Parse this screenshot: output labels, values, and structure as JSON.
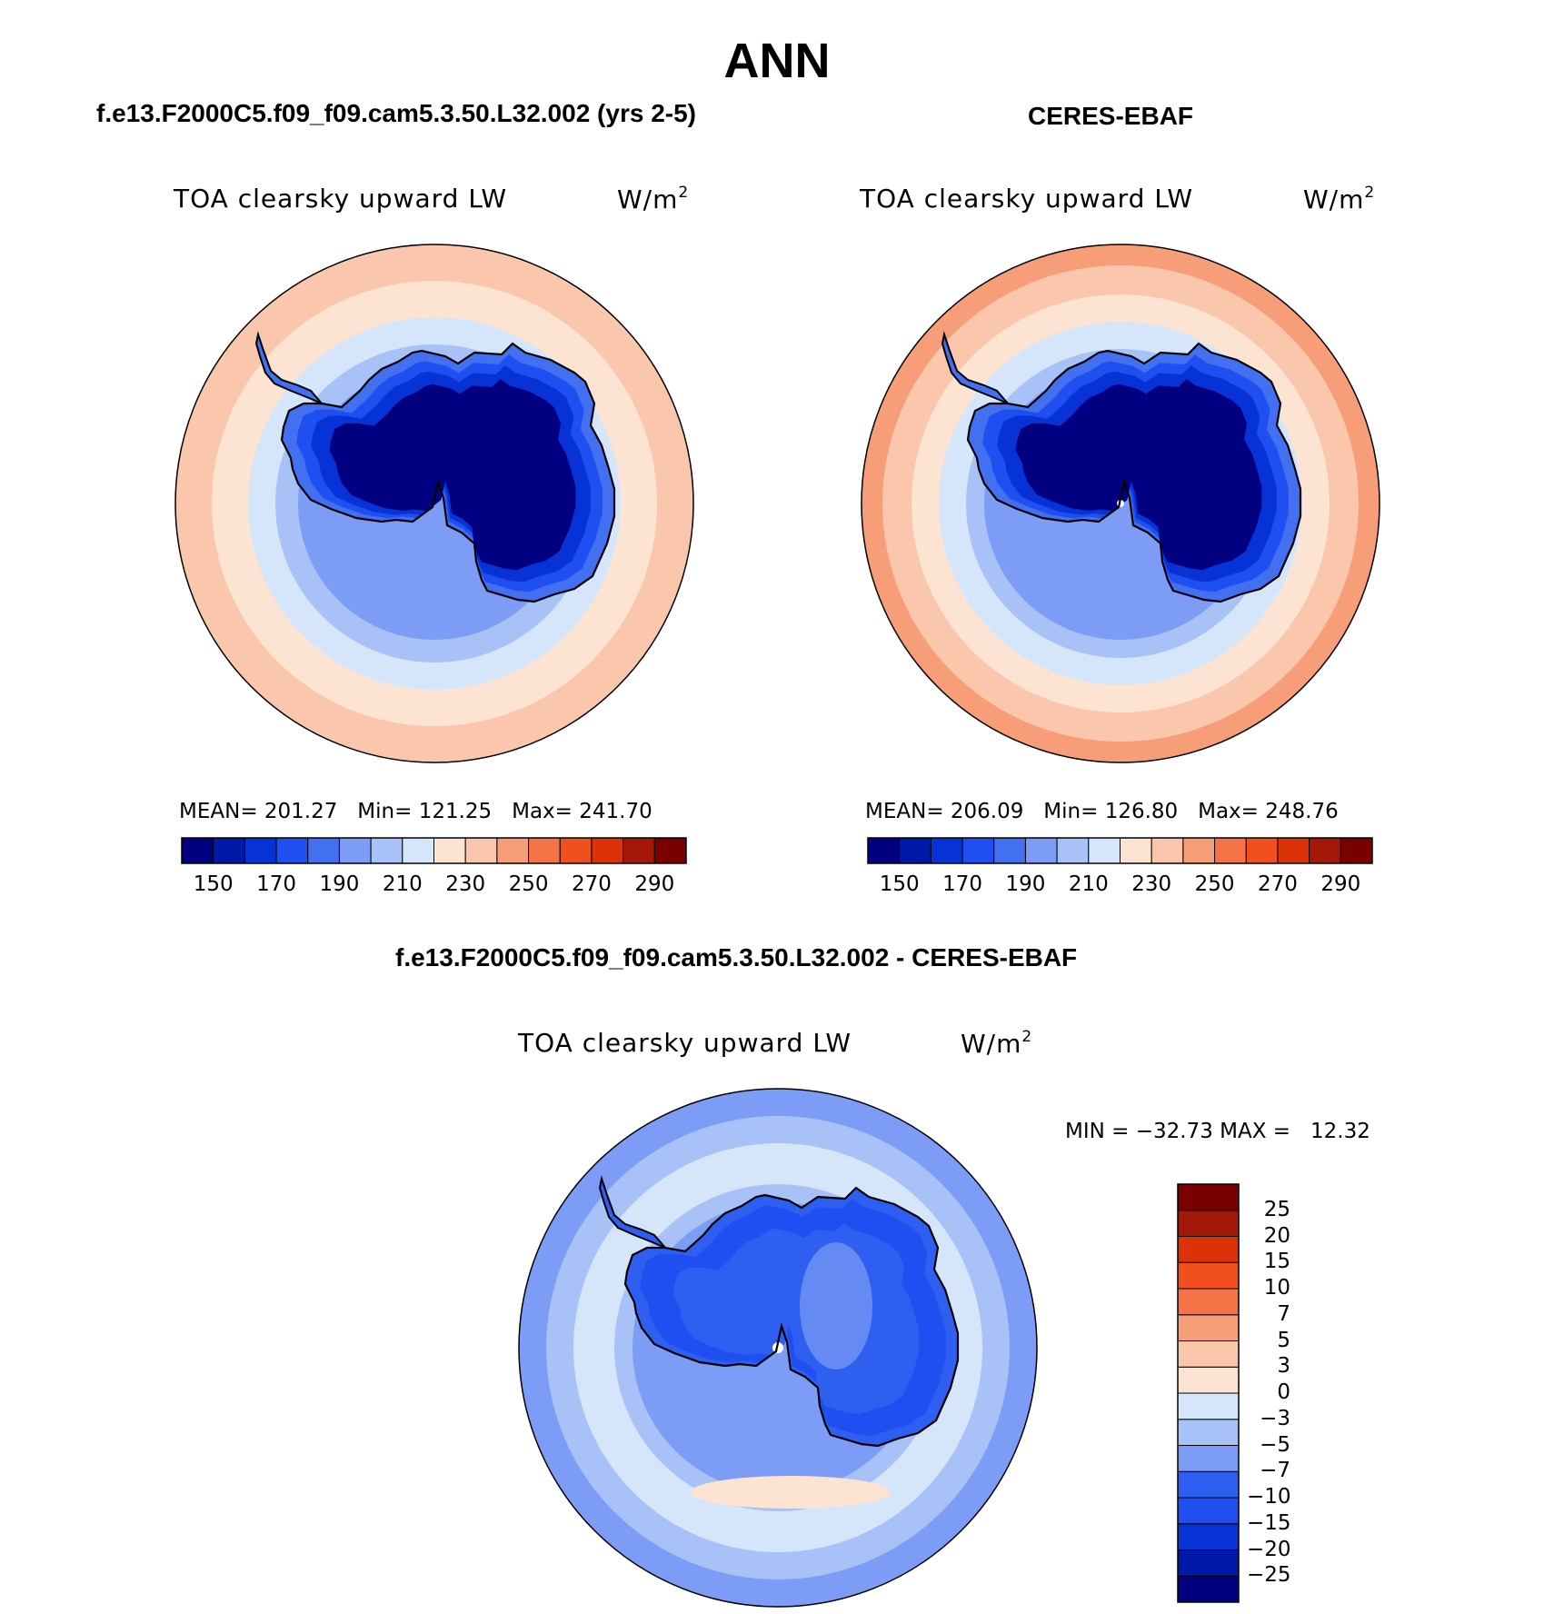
{
  "title": "ANN",
  "panels": [
    {
      "case_title": "f.e13.F2000C5.f09_f09.cam5.3.50.L32.002 (yrs 2-5)",
      "var_label": "TOA clearsky upward LW",
      "units_base": "W/m",
      "units_exp": "2",
      "stats": "MEAN= 201.27   Min= 121.25   Max= 241.70"
    },
    {
      "case_title": "CERES-EBAF",
      "var_label": "TOA clearsky upward LW",
      "units_base": "W/m",
      "units_exp": "2",
      "stats": "MEAN= 206.09   Min= 126.80   Max= 248.76"
    },
    {
      "case_title": "f.e13.F2000C5.f09_f09.cam5.3.50.L32.002 - CERES-EBAF",
      "var_label": "TOA clearsky upward LW",
      "units_base": "W/m",
      "units_exp": "2",
      "stats": "MIN = −32.73 MAX =   12.32"
    }
  ],
  "chart_data": [
    {
      "type": "heatmap",
      "projection": "south-polar stereographic",
      "title": "f.e13.F2000C5.f09_f09.cam5.3.50.L32.002 (yrs 2-5)",
      "variable": "TOA clearsky upward LW",
      "units": "W/m2",
      "mean": 201.27,
      "min": 121.25,
      "max": 241.7,
      "levels": [
        150,
        170,
        190,
        210,
        230,
        250,
        270,
        290
      ],
      "colors": [
        "#000080",
        "#0019a8",
        "#0632d6",
        "#1f4ff0",
        "#4270f0",
        "#7d9cf5",
        "#a8c2f7",
        "#d6e6fa",
        "#fde4d2",
        "#fac7ad",
        "#f79d77",
        "#f57347",
        "#f24f1f",
        "#dc3208",
        "#a31808",
        "#7a0000"
      ]
    },
    {
      "type": "heatmap",
      "projection": "south-polar stereographic",
      "title": "CERES-EBAF",
      "variable": "TOA clearsky upward LW",
      "units": "W/m2",
      "mean": 206.09,
      "min": 126.8,
      "max": 248.76,
      "levels": [
        150,
        170,
        190,
        210,
        230,
        250,
        270,
        290
      ],
      "colors": [
        "#000080",
        "#0019a8",
        "#0632d6",
        "#1f4ff0",
        "#4270f0",
        "#7d9cf5",
        "#a8c2f7",
        "#d6e6fa",
        "#fde4d2",
        "#fac7ad",
        "#f79d77",
        "#f57347",
        "#f24f1f",
        "#dc3208",
        "#a31808",
        "#7a0000"
      ]
    },
    {
      "type": "heatmap",
      "projection": "south-polar stereographic",
      "title": "f.e13.F2000C5.f09_f09.cam5.3.50.L32.002 - CERES-EBAF",
      "variable": "TOA clearsky upward LW",
      "units": "W/m2",
      "min": -32.73,
      "max": 12.32,
      "levels": [
        -25,
        -20,
        -15,
        -10,
        -7,
        -5,
        -3,
        0,
        3,
        5,
        7,
        10,
        15,
        20,
        25
      ],
      "level_labels": [
        "−25",
        "−20",
        "−15",
        "−10",
        "−7",
        "−5",
        "−3",
        "0",
        "3",
        "5",
        "7",
        "10",
        "15",
        "20",
        "25"
      ],
      "colors": [
        "#000080",
        "#0019a8",
        "#0632d6",
        "#1f4ff0",
        "#2e5ff0",
        "#7d9cf5",
        "#a8c2f7",
        "#d6e6fa",
        "#fde4d2",
        "#fac7ad",
        "#f79d77",
        "#f57347",
        "#f24f1f",
        "#dc3208",
        "#a31808",
        "#7a0000"
      ]
    }
  ]
}
